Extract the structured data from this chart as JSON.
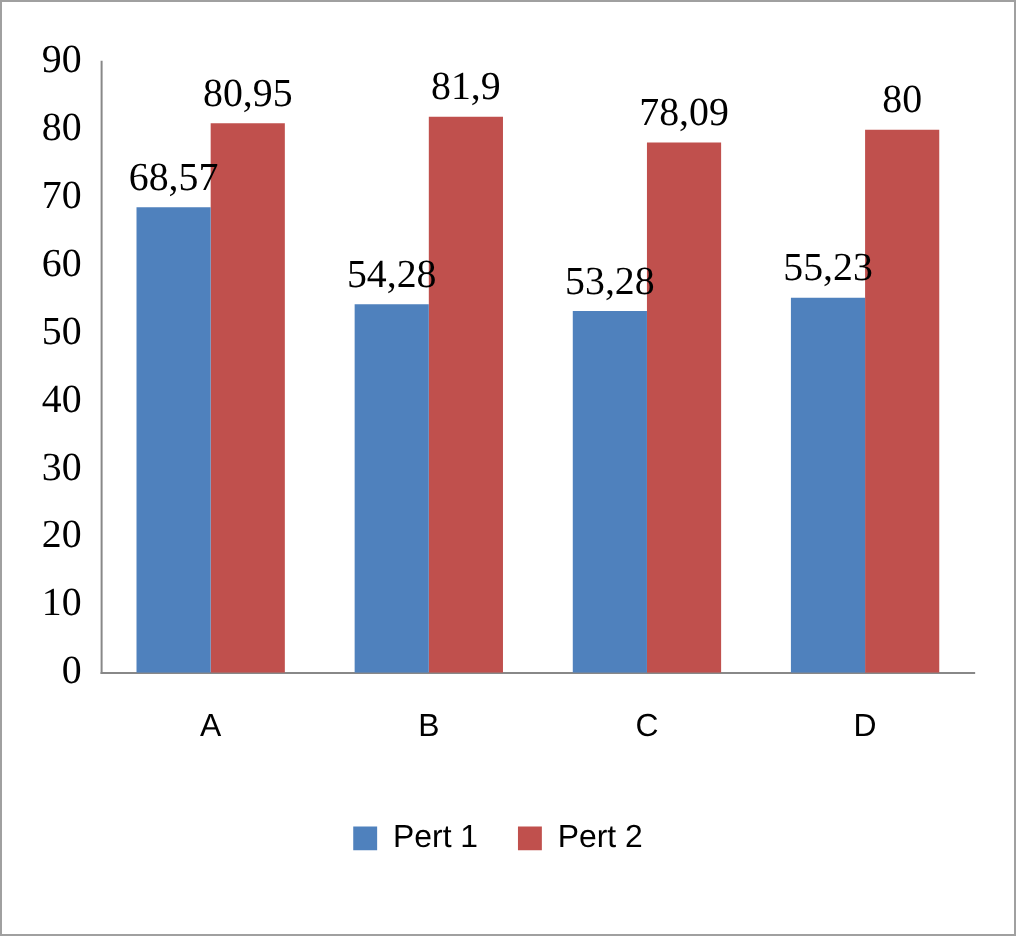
{
  "chart_data": {
    "type": "bar",
    "categories": [
      "A",
      "B",
      "C",
      "D"
    ],
    "series": [
      {
        "name": "Pert 1",
        "color": "#4f81bd",
        "values": [
          68.57,
          54.28,
          53.28,
          55.23
        ],
        "value_labels": [
          "68,57",
          "54,28",
          "53,28",
          "55,23"
        ]
      },
      {
        "name": "Pert 2",
        "color": "#c0504d",
        "values": [
          80.95,
          81.9,
          78.09,
          80
        ],
        "value_labels": [
          "80,95",
          "81,9",
          "78,09",
          "80"
        ]
      }
    ],
    "ylim": [
      0,
      90
    ],
    "yticks": [
      0,
      10,
      20,
      30,
      40,
      50,
      60,
      70,
      80,
      90
    ],
    "grid": false,
    "legend": "bottom"
  }
}
